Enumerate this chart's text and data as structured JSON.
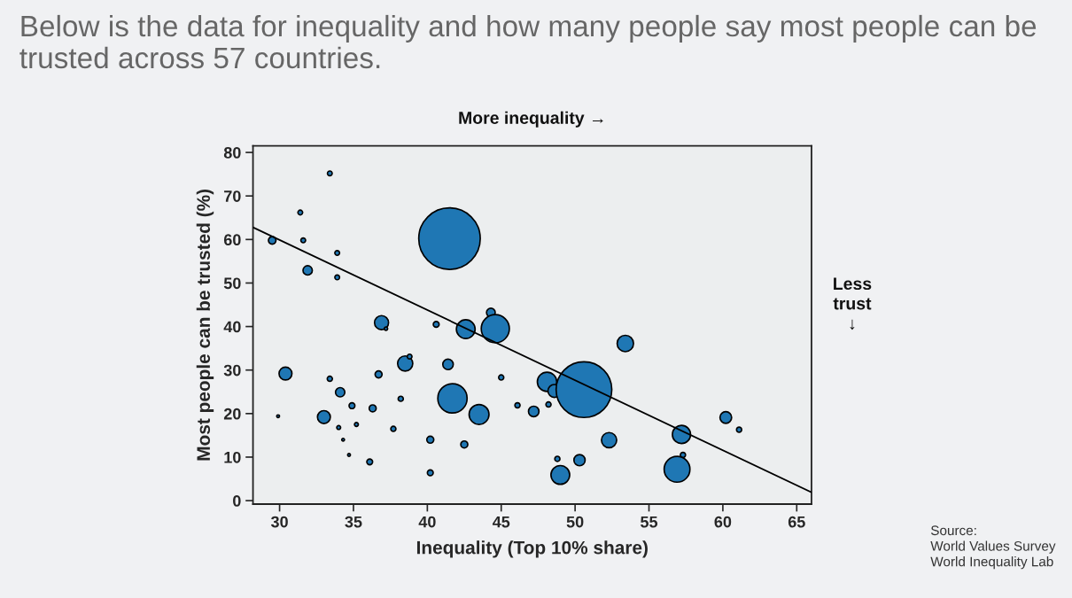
{
  "chart_data": {
    "type": "bubble",
    "title": "Below is the data for inequality and how many people say most people can be trusted across 57 countries.",
    "xlabel": "Inequality (Top 10% share)",
    "ylabel": "Most people can be trusted (%)",
    "annotations": [
      "More inequality →",
      "Less trust ↓",
      "Source:\nWorld Values Survey\nWorld Inequality Lab"
    ],
    "xlim": [
      28.2,
      66
    ],
    "ylim": [
      -0.8,
      81.5
    ],
    "xticks": [
      30,
      35,
      40,
      45,
      50,
      55,
      60,
      65
    ],
    "yticks": [
      0,
      10,
      20,
      30,
      40,
      50,
      60,
      70,
      80
    ],
    "grid": false,
    "legend": false,
    "series": [
      {
        "color": "#1f77b4",
        "x": [
          29.5,
          31.4,
          31.6,
          33.4,
          31.9,
          33.9,
          33.9,
          36.9,
          37.2,
          40.6,
          41.5,
          42.6,
          44.3,
          44.6,
          30.4,
          29.9,
          33.4,
          34.1,
          33.0,
          34.9,
          34.0,
          35.2,
          34.3,
          34.7,
          36.3,
          36.1,
          37.7,
          36.7,
          38.2,
          38.5,
          38.8,
          41.4,
          41.7,
          43.5,
          40.2,
          40.2,
          42.5,
          45.0,
          46.1,
          47.2,
          48.2,
          48.1,
          48.6,
          50.6,
          53.4,
          48.8,
          50.3,
          49.0,
          52.3,
          57.2,
          57.3,
          56.9,
          60.2,
          61.1
        ],
        "values": [
          59.8,
          66.2,
          59.8,
          75.2,
          52.9,
          56.9,
          51.3,
          40.9,
          39.5,
          40.5,
          60.2,
          39.4,
          43.2,
          39.5,
          29.2,
          19.4,
          28.0,
          24.9,
          19.2,
          21.8,
          16.8,
          17.5,
          14.0,
          10.5,
          21.2,
          8.9,
          16.5,
          29.0,
          23.4,
          31.5,
          33.1,
          31.3,
          23.5,
          19.8,
          14.0,
          6.4,
          12.9,
          28.3,
          21.9,
          20.5,
          22.1,
          27.3,
          25.2,
          25.5,
          36.1,
          9.6,
          9.3,
          5.9,
          13.9,
          15.2,
          10.5,
          7.2,
          19.1,
          16.3
        ],
        "sizes": [
          0.015,
          0.006,
          0.006,
          0.006,
          0.023,
          0.006,
          0.006,
          0.052,
          0.003,
          0.009,
          1,
          0.093,
          0.02,
          0.209,
          0.044,
          0.002,
          0.007,
          0.023,
          0.044,
          0.009,
          0.004,
          0.004,
          0.002,
          0.002,
          0.013,
          0.009,
          0.007,
          0.013,
          0.007,
          0.061,
          0.006,
          0.029,
          0.227,
          0.105,
          0.013,
          0.009,
          0.013,
          0.007,
          0.007,
          0.029,
          0.007,
          0.099,
          0.044,
          0.819,
          0.071,
          0.007,
          0.033,
          0.093,
          0.061,
          0.087,
          0.007,
          0.176,
          0.036,
          0.007
        ]
      },
      {
        "type": "line",
        "color": "#000000",
        "x": [
          28.2,
          66
        ],
        "values": [
          62.8,
          1.9
        ]
      }
    ]
  }
}
